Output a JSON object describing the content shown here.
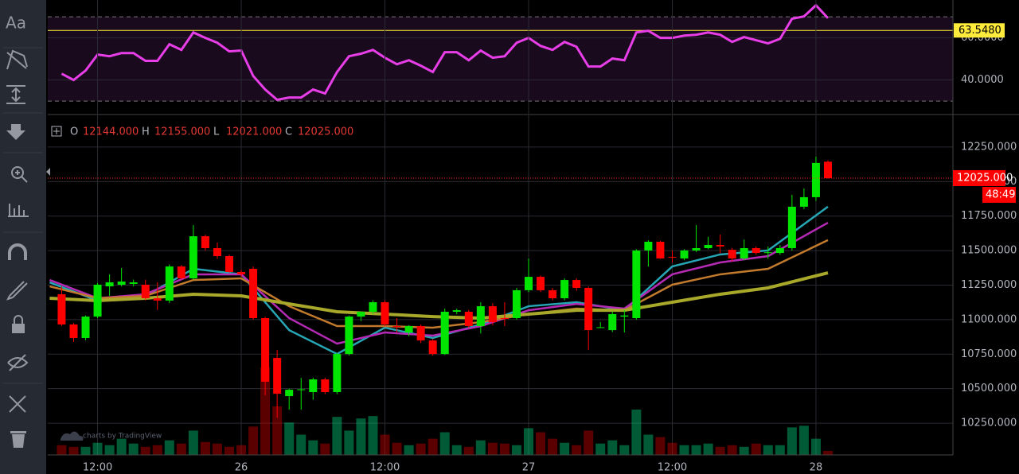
{
  "toolbar": {
    "text_tool": "Aa"
  },
  "chart_data": [
    {
      "type": "line",
      "color": "#e83ee8",
      "xlim": [
        -1.16,
        74.44
      ],
      "ylim": [
        24,
        78
      ],
      "yticks": [
        {
          "value": 40,
          "label": "40.0000"
        },
        {
          "value": 60,
          "label": "60.0000"
        }
      ],
      "bands": [
        30,
        70
      ],
      "level": {
        "value": 63.548,
        "label": "63.5480",
        "color": "#ffeb3b"
      },
      "values": [
        43.0,
        40.0,
        44.5,
        52.1,
        51.3,
        52.8,
        52.8,
        49.1,
        49.1,
        57.0,
        54.3,
        62.6,
        60.0,
        57.7,
        53.6,
        54.0,
        41.9,
        35.5,
        30.6,
        31.7,
        31.7,
        35.5,
        33.6,
        43.8,
        51.3,
        52.5,
        54.3,
        50.6,
        47.5,
        49.4,
        46.8,
        43.8,
        53.2,
        53.2,
        49.4,
        54.0,
        50.6,
        51.3,
        57.7,
        60.0,
        56.2,
        54.3,
        58.1,
        55.8,
        46.4,
        46.4,
        50.2,
        49.4,
        62.6,
        63.4,
        60.0,
        60.0,
        61.1,
        61.5,
        62.6,
        61.5,
        58.1,
        60.4,
        58.9,
        57.4,
        59.6,
        69.1,
        70.2,
        75.5,
        69.4
      ]
    },
    {
      "type": "candlestick",
      "up_color": "#00e600",
      "down_color": "#ff0000",
      "grid": true,
      "xlim": [
        -1.16,
        74.44
      ],
      "ylim": [
        10020,
        12480
      ],
      "xticks": [
        {
          "value": 3,
          "label": "12:00"
        },
        {
          "value": 15,
          "label": "26"
        },
        {
          "value": 27,
          "label": "12:00"
        },
        {
          "value": 39,
          "label": "27"
        },
        {
          "value": 51,
          "label": "12:00"
        },
        {
          "value": 63,
          "label": "28"
        }
      ],
      "yticks": [
        {
          "value": 10250,
          "label": "10250.000"
        },
        {
          "value": 10500,
          "label": "10500.000"
        },
        {
          "value": 10750,
          "label": "10750.000"
        },
        {
          "value": 11000,
          "label": "11000.000"
        },
        {
          "value": 11250,
          "label": "11250.000"
        },
        {
          "value": 11500,
          "label": "11500.000"
        },
        {
          "value": 11750,
          "label": "11750.000"
        },
        {
          "value": 12000,
          "label": "12000.000"
        },
        {
          "value": 12250,
          "label": "12250.000"
        }
      ],
      "ohlc_legend": [
        {
          "name": "O",
          "value": "12144.000"
        },
        {
          "name": "H",
          "value": "12155.000"
        },
        {
          "name": "L",
          "value": "12021.000"
        },
        {
          "name": "C",
          "value": "12025.000"
        }
      ],
      "last_price": {
        "value": 12025,
        "label": "12025.000"
      },
      "countdown": "48:49",
      "watermark": "charts by TradingView",
      "open": [
        11184,
        10965,
        10867,
        11022,
        11241,
        11253,
        11259,
        11253,
        11155,
        11138,
        11385,
        11299,
        11604,
        11518,
        11460,
        11345,
        11368,
        11011,
        10723,
        10446,
        10492,
        10475,
        10567,
        10475,
        10751,
        11022,
        11057,
        11126,
        10953,
        10907,
        10953,
        10849,
        10751,
        11057,
        11057,
        10953,
        11097,
        11011,
        11011,
        11213,
        11310,
        11213,
        11155,
        11287,
        11230,
        10942,
        10924,
        11022,
        11011,
        11501,
        11564,
        11455,
        11443,
        11501,
        11518,
        11541,
        11506,
        11443,
        11518,
        11483,
        11483,
        11518,
        11818,
        11887,
        12144
      ],
      "high": [
        11240,
        10975,
        11030,
        11265,
        11328,
        11374,
        11290,
        11290,
        11270,
        11400,
        11395,
        11685,
        11615,
        11558,
        11470,
        11360,
        11385,
        11020,
        10780,
        10500,
        10578,
        10580,
        10580,
        10760,
        11030,
        11060,
        11140,
        11140,
        11011,
        10960,
        10965,
        10860,
        11080,
        11080,
        11070,
        11126,
        11120,
        11126,
        11230,
        11443,
        11320,
        11230,
        11300,
        11300,
        11240,
        10982,
        11060,
        11068,
        11510,
        11575,
        11570,
        11501,
        11510,
        11685,
        11600,
        11616,
        11520,
        11580,
        11530,
        11530,
        11540,
        11904,
        11950,
        12181,
        12155
      ],
      "low": [
        10955,
        10838,
        10850,
        11010,
        11172,
        11240,
        11240,
        11140,
        11070,
        11120,
        11290,
        11290,
        11500,
        11440,
        11340,
        11310,
        11000,
        10452,
        10290,
        10348,
        10348,
        10420,
        10460,
        10460,
        10740,
        10990,
        11040,
        10950,
        10907,
        10880,
        10830,
        10740,
        10745,
        11040,
        10940,
        10900,
        10960,
        10953,
        11000,
        11200,
        11200,
        11140,
        11140,
        11210,
        10780,
        10940,
        10910,
        10907,
        11000,
        11385,
        11440,
        11414,
        11430,
        11490,
        11510,
        11480,
        11420,
        11430,
        11470,
        11440,
        11470,
        11500,
        11800,
        11860,
        12021
      ],
      "close": [
        10965,
        10867,
        11022,
        11253,
        11270,
        11276,
        11270,
        11155,
        11138,
        11385,
        11299,
        11604,
        11518,
        11460,
        11345,
        11328,
        11011,
        10550,
        10463,
        10492,
        10495,
        10567,
        10475,
        10751,
        11022,
        11057,
        11126,
        10965,
        10948,
        10953,
        10849,
        10751,
        11057,
        11068,
        10953,
        11097,
        10982,
        11006,
        11213,
        11310,
        11213,
        11155,
        11287,
        11230,
        10924,
        10945,
        11040,
        11030,
        11501,
        11564,
        11443,
        11450,
        11501,
        11518,
        11541,
        11530,
        11443,
        11518,
        11483,
        11488,
        11518,
        11818,
        11887,
        12135,
        12025
      ],
      "volume": [
        12,
        10,
        10,
        15,
        12,
        20,
        14,
        10,
        12,
        18,
        14,
        30,
        16,
        14,
        10,
        12,
        35,
        108,
        60,
        40,
        25,
        18,
        14,
        47,
        30,
        45,
        48,
        25,
        15,
        12,
        14,
        20,
        28,
        12,
        10,
        18,
        15,
        14,
        12,
        33,
        28,
        20,
        15,
        12,
        30,
        14,
        18,
        12,
        56,
        25,
        22,
        15,
        12,
        12,
        14,
        10,
        12,
        10,
        14,
        12,
        12,
        34,
        36,
        20,
        5
      ],
      "moving_averages": [
        {
          "color": "#26a6b4",
          "x": [
            -1,
            3,
            7,
            11,
            15,
            19,
            23,
            27,
            31,
            35,
            39,
            43,
            47,
            51,
            55,
            59,
            64
          ],
          "values": [
            11270,
            11138,
            11172,
            11368,
            11328,
            10924,
            10751,
            10942,
            10867,
            10965,
            11097,
            11126,
            11068,
            11385,
            11472,
            11501,
            11818
          ]
        },
        {
          "color": "#b52ab5",
          "x": [
            -1,
            3,
            7,
            11,
            15,
            19,
            23,
            27,
            31,
            35,
            39,
            43,
            47,
            51,
            55,
            59,
            64
          ],
          "values": [
            11287,
            11155,
            11184,
            11328,
            11328,
            11011,
            10826,
            10907,
            10884,
            10953,
            11068,
            11114,
            11080,
            11328,
            11414,
            11460,
            11702
          ]
        },
        {
          "color": "#c27a2c",
          "x": [
            -1,
            3,
            7,
            11,
            15,
            19,
            23,
            27,
            31,
            35,
            39,
            43,
            47,
            51,
            55,
            59,
            64
          ],
          "values": [
            11241,
            11155,
            11172,
            11287,
            11299,
            11097,
            10953,
            10953,
            10942,
            10982,
            11040,
            11080,
            11068,
            11253,
            11328,
            11368,
            11576
          ]
        },
        {
          "color": "#a8a82a",
          "x": [
            -1,
            3,
            7,
            11,
            15,
            19,
            23,
            27,
            31,
            35,
            39,
            43,
            47,
            51,
            55,
            59,
            64
          ],
          "values": [
            11155,
            11138,
            11155,
            11184,
            11172,
            11114,
            11057,
            11040,
            11022,
            11011,
            11040,
            11068,
            11068,
            11126,
            11184,
            11230,
            11339
          ]
        }
      ]
    }
  ]
}
